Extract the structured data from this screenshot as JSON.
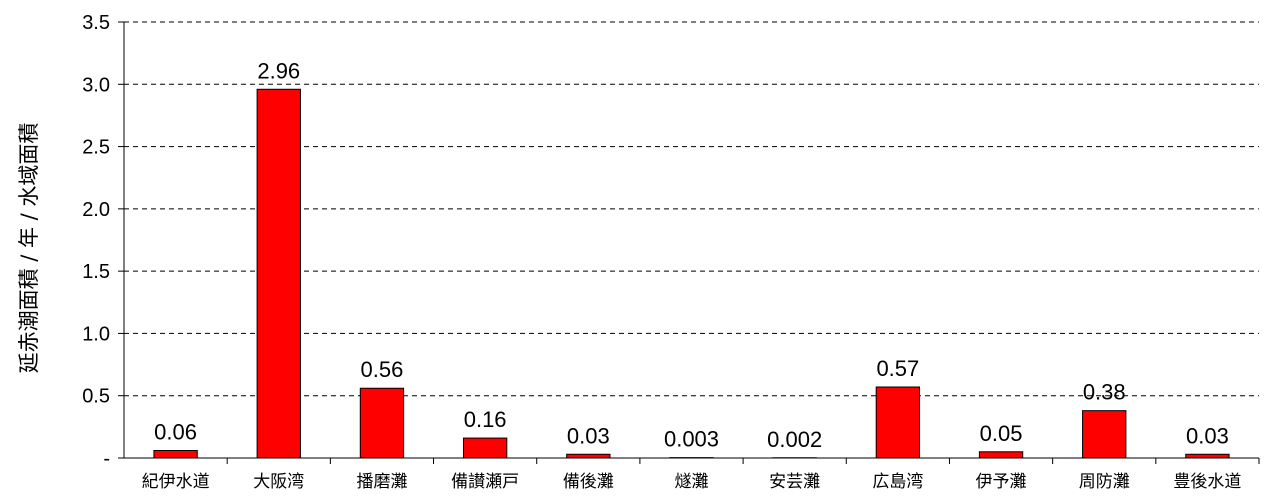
{
  "chart_data": {
    "type": "bar",
    "title": "",
    "xlabel": "",
    "ylabel": "延赤潮面積 / 年 / 水域面積",
    "ylim": [
      0,
      3.5
    ],
    "yticks": [
      {
        "value": 0,
        "label": "-"
      },
      {
        "value": 0.5,
        "label": "0.5"
      },
      {
        "value": 1.0,
        "label": "1.0"
      },
      {
        "value": 1.5,
        "label": "1.5"
      },
      {
        "value": 2.0,
        "label": "2.0"
      },
      {
        "value": 2.5,
        "label": "2.5"
      },
      {
        "value": 3.0,
        "label": "3.0"
      },
      {
        "value": 3.5,
        "label": "3.5"
      }
    ],
    "grid": true,
    "grid_style": "dashed",
    "bar_color": "#ff0000",
    "categories": [
      "紀伊水道",
      "大阪湾",
      "播磨灘",
      "備讃瀬戸",
      "備後灘",
      "燧灘",
      "安芸灘",
      "広島湾",
      "伊予灘",
      "周防灘",
      "豊後水道"
    ],
    "values": [
      0.06,
      2.96,
      0.56,
      0.16,
      0.03,
      0.003,
      0.002,
      0.57,
      0.05,
      0.38,
      0.03
    ],
    "data_labels": [
      "0.06",
      "2.96",
      "0.56",
      "0.16",
      "0.03",
      "0.003",
      "0.002",
      "0.57",
      "0.05",
      "0.38",
      "0.03"
    ]
  }
}
